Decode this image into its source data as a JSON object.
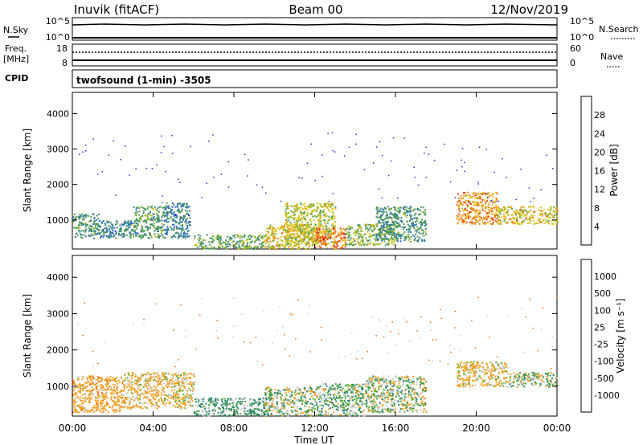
{
  "header": {
    "station": "Inuvik (fitACF)",
    "beam": "Beam 00",
    "date": "12/Nov/2019"
  },
  "sky_panel": {
    "left_label": "N.Sky",
    "right_label": "N.Search",
    "left_ticks": [
      "10^5",
      "10^0"
    ],
    "right_ticks": [
      "10^5",
      "10^0"
    ]
  },
  "freq_panel": {
    "left_label_1": "Freq.",
    "left_label_2": "[MHz]",
    "right_label": "Nave",
    "left_ticks": [
      "18",
      "8"
    ],
    "right_ticks": [
      "60",
      "0"
    ]
  },
  "cpid": {
    "label": "CPID",
    "program": "twofsound (1-min) -3505"
  },
  "colors": {
    "power": [
      "#2030e0",
      "#2a6fc0",
      "#3a8a70",
      "#5aa050",
      "#b8c020",
      "#f0c020",
      "#f08010",
      "#e84010",
      "#e00000"
    ],
    "velocity": [
      "#e00000",
      "#f07010",
      "#f0a020",
      "#c8c8c8",
      "#c8c8c8",
      "#50b030",
      "#2a8a60",
      "#2050b0",
      "#1030d0"
    ]
  },
  "chart_data": [
    {
      "type": "heatmap",
      "title": "Power",
      "xlabel": "Time UT",
      "ylabel": "Slant Range [km]",
      "colorbar_label": "Power [dB]",
      "colorbar_ticks": [
        "4",
        "8",
        "12",
        "16",
        "20",
        "24",
        "28"
      ],
      "colorbar_range": [
        0,
        32
      ],
      "x_ticks": [
        "00:00",
        "04:00",
        "08:00",
        "12:00",
        "16:00",
        "20:00",
        "00:00"
      ],
      "x_range_hours": [
        0,
        24
      ],
      "ylim": [
        180,
        4600
      ],
      "y_ticks": [
        "1000",
        "2000",
        "3000",
        "4000"
      ],
      "regions": [
        {
          "t": [
            0.0,
            1.3
          ],
          "r": [
            500,
            1200
          ],
          "v": 10
        },
        {
          "t": [
            1.3,
            3.0
          ],
          "r": [
            500,
            1000
          ],
          "v": 8
        },
        {
          "t": [
            3.0,
            4.5
          ],
          "r": [
            500,
            1400
          ],
          "v": 11
        },
        {
          "t": [
            4.5,
            5.8
          ],
          "r": [
            500,
            1500
          ],
          "v": 8
        },
        {
          "t": [
            6.0,
            9.5
          ],
          "r": [
            200,
            600
          ],
          "v": 12
        },
        {
          "t": [
            9.5,
            12.0
          ],
          "r": [
            200,
            900
          ],
          "v": 18
        },
        {
          "t": [
            10.5,
            13.0
          ],
          "r": [
            300,
            1500
          ],
          "v": 16
        },
        {
          "t": [
            12.0,
            13.5
          ],
          "r": [
            200,
            800
          ],
          "v": 24
        },
        {
          "t": [
            13.5,
            16.0
          ],
          "r": [
            300,
            900
          ],
          "v": 14
        },
        {
          "t": [
            15.0,
            17.5
          ],
          "r": [
            400,
            1400
          ],
          "v": 10
        },
        {
          "t": [
            19.0,
            21.0
          ],
          "r": [
            900,
            1800
          ],
          "v": 22
        },
        {
          "t": [
            21.0,
            24.0
          ],
          "r": [
            900,
            1400
          ],
          "v": 18
        }
      ]
    },
    {
      "type": "heatmap",
      "title": "Velocity",
      "xlabel": "Time UT",
      "ylabel": "Slant Range [km]",
      "colorbar_label": "Velocity [m s⁻¹]",
      "colorbar_ticks": [
        "1000",
        "500",
        "100",
        "25",
        "-25",
        "-100",
        "-500",
        "-1000"
      ],
      "x_ticks": [
        "00:00",
        "04:00",
        "08:00",
        "12:00",
        "16:00",
        "20:00",
        "00:00"
      ],
      "x_range_hours": [
        0,
        24
      ],
      "ylim": [
        180,
        4600
      ],
      "y_ticks": [
        "1000",
        "2000",
        "3000",
        "4000"
      ],
      "regions": [
        {
          "t": [
            0.0,
            2.5
          ],
          "r": [
            300,
            1300
          ],
          "v": -300
        },
        {
          "t": [
            2.5,
            4.5
          ],
          "r": [
            400,
            1400
          ],
          "v": -200
        },
        {
          "t": [
            4.5,
            6.0
          ],
          "r": [
            400,
            1400
          ],
          "v": -150
        },
        {
          "t": [
            6.0,
            9.5
          ],
          "r": [
            200,
            700
          ],
          "v": 150
        },
        {
          "t": [
            9.5,
            12.0
          ],
          "r": [
            200,
            1000
          ],
          "v": 0
        },
        {
          "t": [
            12.0,
            14.5
          ],
          "r": [
            200,
            1100
          ],
          "v": 80
        },
        {
          "t": [
            14.5,
            17.5
          ],
          "r": [
            300,
            1300
          ],
          "v": 0
        },
        {
          "t": [
            19.0,
            21.5
          ],
          "r": [
            1000,
            1700
          ],
          "v": -150
        },
        {
          "t": [
            21.5,
            24.0
          ],
          "r": [
            1000,
            1400
          ],
          "v": 0
        }
      ]
    }
  ]
}
